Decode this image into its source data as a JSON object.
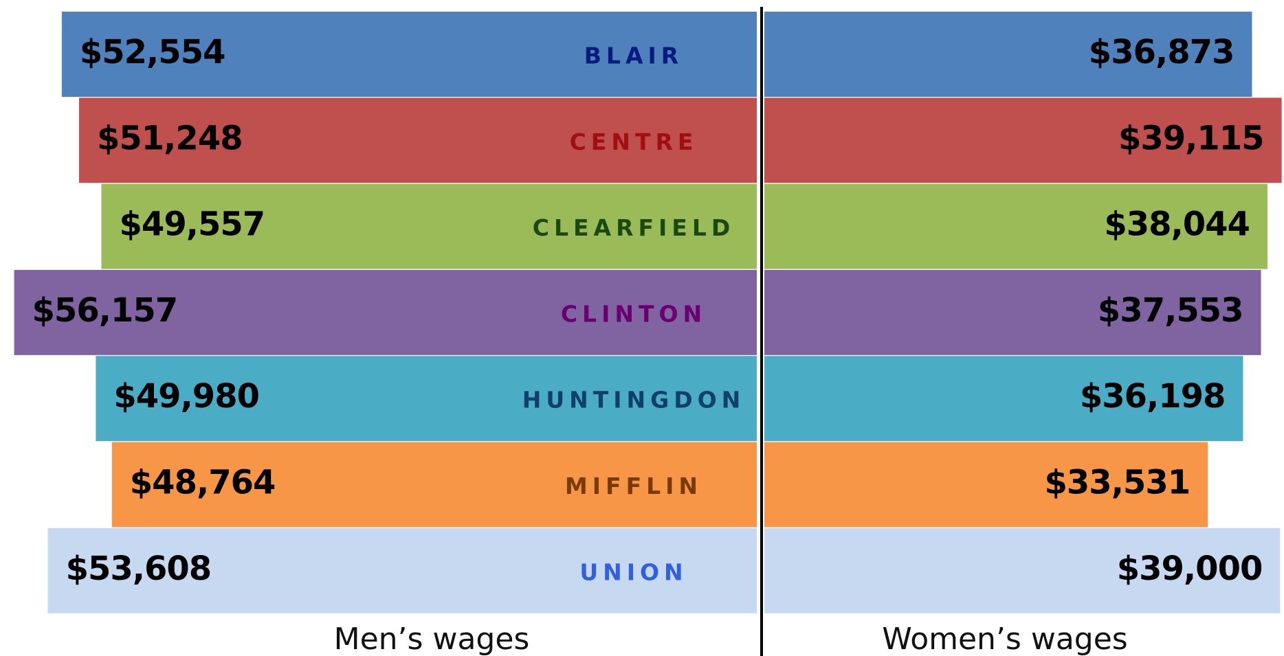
{
  "chart_data": {
    "type": "bar",
    "categories": [
      "BLAIR",
      "CENTRE",
      "CLEARFIELD",
      "CLINTON",
      "HUNTINGDON",
      "MIFFLIN",
      "UNION"
    ],
    "colors": [
      "#4f81bd",
      "#c0504d",
      "#9bbb59",
      "#8064a2",
      "#4bacc6",
      "#f79646",
      "#c6d9f1"
    ],
    "label_colors": [
      "#0a1a80",
      "#a01010",
      "#1a4a10",
      "#6a0070",
      "#103e6e",
      "#7a3a08",
      "#3060e0"
    ],
    "series": [
      {
        "name": "Men’s wages",
        "values": [
          52554,
          51248,
          49557,
          56157,
          49980,
          48764,
          53608
        ],
        "value_labels": [
          "$52,554",
          "$51,248",
          "$49,557",
          "$56,157",
          "$49,980",
          "$48,764",
          "$53,608"
        ]
      },
      {
        "name": "Women’s wages",
        "values": [
          36873,
          39115,
          38044,
          37553,
          36198,
          33531,
          39000
        ],
        "value_labels": [
          "$36,873",
          "$39,115",
          "$38,044",
          "$37,553",
          "$36,198",
          "$33,531",
          "$39,000"
        ]
      }
    ]
  }
}
